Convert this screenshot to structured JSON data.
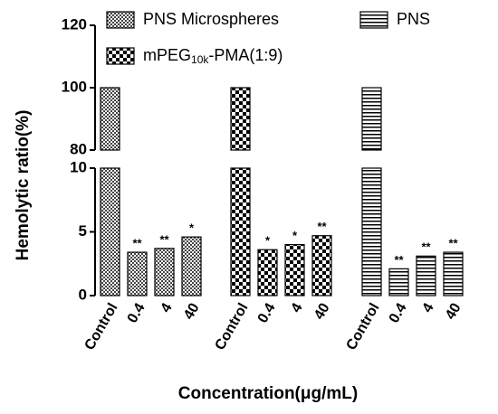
{
  "chart_data": {
    "type": "bar",
    "y_label": "Hemolytic ratio(%)",
    "x_label": "Concentration(μg/mL)",
    "categories": [
      "Control",
      "0.4",
      "4",
      "40"
    ],
    "y_segments": [
      {
        "ylim": [
          0,
          10
        ],
        "yticks": [
          0,
          5,
          10
        ]
      },
      {
        "ylim": [
          80,
          120
        ],
        "yticks": [
          80,
          100,
          120
        ]
      }
    ],
    "series": [
      {
        "name": "PNS Microspheres",
        "pattern": "fine-check",
        "values": [
          100,
          3.4,
          3.7,
          4.6
        ],
        "annotations": [
          null,
          "**",
          "**",
          "*"
        ]
      },
      {
        "name": "mPEG10k-PMA(1:9)",
        "pattern": "check",
        "values": [
          100,
          3.6,
          4.0,
          4.7
        ],
        "annotations": [
          null,
          "*",
          "*",
          "**"
        ]
      },
      {
        "name": "PNS",
        "pattern": "stripes",
        "values": [
          100,
          2.1,
          3.1,
          3.4
        ],
        "annotations": [
          null,
          "**",
          "**",
          "**"
        ]
      }
    ]
  }
}
